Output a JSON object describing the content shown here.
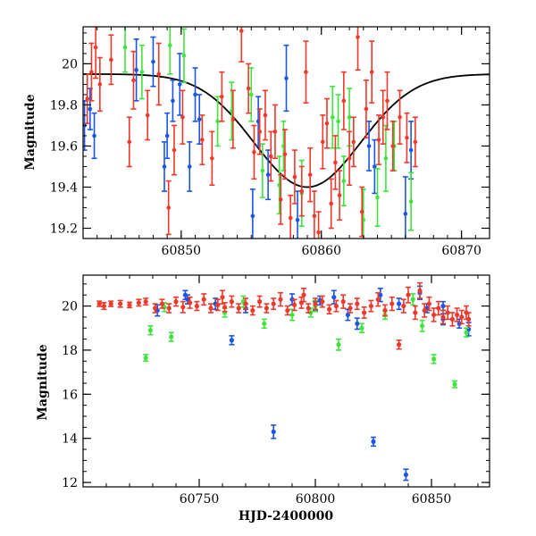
{
  "colors": {
    "blue": "#1a55e6",
    "green": "#3fe43f",
    "red": "#f0392b",
    "model": "#000000"
  },
  "chart_data": [
    {
      "type": "scatter",
      "title": "",
      "xlabel": "",
      "ylabel": "Magnitude",
      "xlim": [
        60843,
        60872
      ],
      "ylim": [
        20.18,
        19.15
      ],
      "xticks": [
        60850,
        60860,
        60870
      ],
      "yticks": [
        19.2,
        19.4,
        19.6,
        19.8,
        20
      ],
      "ytick_labels": [
        "19.2",
        "19.4",
        "19.6",
        "19.8",
        "20"
      ],
      "model_curve": {
        "type": "gaussian",
        "peak_x": 60859.0,
        "peak_mag": 19.4,
        "sigma": 3.8,
        "baseline_mag": 19.95
      },
      "series": [
        {
          "color": "blue",
          "points": [
            [
              60843.1,
              19.7,
              0.12
            ],
            [
              60843.5,
              19.78,
              0.1
            ],
            [
              60843.8,
              19.65,
              0.11
            ],
            [
              60846.8,
              19.97,
              0.15
            ],
            [
              60848.0,
              20.01,
              0.12
            ],
            [
              60848.8,
              19.5,
              0.12
            ],
            [
              60849.0,
              19.65,
              0.11
            ],
            [
              60849.4,
              19.82,
              0.1
            ],
            [
              60849.9,
              19.9,
              0.15
            ],
            [
              60850.6,
              19.5,
              0.12
            ],
            [
              60851.0,
              19.85,
              0.13
            ],
            [
              60851.3,
              19.73,
              0.12
            ],
            [
              60855.1,
              19.26,
              0.13
            ],
            [
              60855.5,
              19.72,
              0.12
            ],
            [
              60856.2,
              19.46,
              0.12
            ],
            [
              60857.5,
              19.93,
              0.16
            ],
            [
              60858.3,
              19.24,
              0.14
            ],
            [
              60863.4,
              19.6,
              0.12
            ],
            [
              60863.8,
              19.5,
              0.13
            ],
            [
              60866.0,
              19.27,
              0.18
            ],
            [
              60866.4,
              19.58,
              0.14
            ]
          ]
        },
        {
          "color": "green",
          "points": [
            [
              60846.0,
              20.08,
              0.12
            ],
            [
              60847.2,
              19.96,
              0.13
            ],
            [
              60849.2,
              20.09,
              0.14
            ],
            [
              60850.2,
              20.04,
              0.13
            ],
            [
              60852.6,
              19.72,
              0.12
            ],
            [
              60853.6,
              19.77,
              0.14
            ],
            [
              60855.0,
              19.85,
              0.13
            ],
            [
              60855.8,
              19.48,
              0.13
            ],
            [
              60857.0,
              19.41,
              0.14
            ],
            [
              60857.3,
              19.6,
              0.12
            ],
            [
              60858.6,
              19.37,
              0.16
            ],
            [
              60860.8,
              19.74,
              0.15
            ],
            [
              60861.2,
              19.72,
              0.13
            ],
            [
              60861.6,
              19.43,
              0.12
            ],
            [
              60862.0,
              19.74,
              0.14
            ],
            [
              60863.0,
              19.24,
              0.15
            ],
            [
              60864.0,
              19.35,
              0.14
            ],
            [
              60864.6,
              19.54,
              0.16
            ],
            [
              60865.2,
              19.6,
              0.12
            ],
            [
              60866.4,
              19.33,
              0.14
            ]
          ]
        },
        {
          "color": "red",
          "points": [
            [
              60843.3,
              19.83,
              0.12
            ],
            [
              60843.6,
              19.96,
              0.14
            ],
            [
              60843.9,
              20.08,
              0.15
            ],
            [
              60844.2,
              19.9,
              0.13
            ],
            [
              60845.0,
              20.02,
              0.12
            ],
            [
              60846.3,
              19.62,
              0.12
            ],
            [
              60846.6,
              19.92,
              0.14
            ],
            [
              60847.6,
              19.75,
              0.12
            ],
            [
              60848.4,
              19.95,
              0.15
            ],
            [
              60849.1,
              19.3,
              0.13
            ],
            [
              60849.5,
              19.58,
              0.12
            ],
            [
              60850.1,
              19.74,
              0.13
            ],
            [
              60851.5,
              19.63,
              0.12
            ],
            [
              60852.2,
              19.54,
              0.13
            ],
            [
              60852.9,
              19.84,
              0.12
            ],
            [
              60853.7,
              19.73,
              0.14
            ],
            [
              60854.3,
              20.16,
              0.15
            ],
            [
              60854.8,
              19.88,
              0.12
            ],
            [
              60855.2,
              19.57,
              0.13
            ],
            [
              60855.6,
              19.67,
              0.11
            ],
            [
              60856.0,
              19.75,
              0.12
            ],
            [
              60856.4,
              19.55,
              0.12
            ],
            [
              60856.7,
              19.67,
              0.13
            ],
            [
              60857.1,
              19.34,
              0.12
            ],
            [
              60857.4,
              19.56,
              0.12
            ],
            [
              60857.8,
              19.25,
              0.11
            ],
            [
              60858.1,
              19.45,
              0.13
            ],
            [
              60858.6,
              19.38,
              0.12
            ],
            [
              60858.9,
              19.96,
              0.15
            ],
            [
              60859.2,
              19.46,
              0.13
            ],
            [
              60859.5,
              19.26,
              0.12
            ],
            [
              60859.8,
              19.18,
              0.1
            ],
            [
              60860.1,
              19.62,
              0.13
            ],
            [
              60860.4,
              19.71,
              0.12
            ],
            [
              60860.7,
              19.32,
              0.12
            ],
            [
              60861.0,
              19.52,
              0.13
            ],
            [
              60861.3,
              19.36,
              0.12
            ],
            [
              60861.6,
              19.82,
              0.14
            ],
            [
              60862.0,
              19.54,
              0.13
            ],
            [
              60862.3,
              19.62,
              0.12
            ],
            [
              60862.6,
              20.13,
              0.16
            ],
            [
              60862.9,
              19.28,
              0.12
            ],
            [
              60863.2,
              19.78,
              0.14
            ],
            [
              60863.6,
              19.96,
              0.15
            ],
            [
              60864.1,
              19.63,
              0.12
            ],
            [
              60864.4,
              19.74,
              0.13
            ],
            [
              60864.7,
              19.82,
              0.14
            ],
            [
              60865.1,
              19.6,
              0.12
            ],
            [
              60865.6,
              19.74,
              0.13
            ],
            [
              60866.1,
              19.64,
              0.12
            ],
            [
              60866.7,
              19.62,
              0.12
            ]
          ]
        }
      ]
    },
    {
      "type": "scatter",
      "title": "",
      "xlabel": "HJD-2400000",
      "ylabel": "Magnitude",
      "xlim": [
        60700,
        60875
      ],
      "ylim": [
        21.4,
        11.8
      ],
      "xticks": [
        60750,
        60800,
        60850
      ],
      "yticks": [
        12,
        14,
        16,
        18,
        20
      ],
      "ytick_labels": [
        "12",
        "14",
        "16",
        "18",
        "20"
      ],
      "series": [
        {
          "color": "blue",
          "points": [
            [
              60782,
              14.3,
              0.3
            ],
            [
              60825,
              13.85,
              0.2
            ],
            [
              60839,
              12.35,
              0.25
            ],
            [
              60764,
              18.45,
              0.2
            ],
            [
              60732,
              19.8,
              0.25
            ],
            [
              60745,
              20.3,
              0.2
            ],
            [
              60757,
              20.1,
              0.25
            ],
            [
              60770,
              19.9,
              0.2
            ],
            [
              60790,
              20.3,
              0.25
            ],
            [
              60800,
              20.0,
              0.2
            ],
            [
              60808,
              20.4,
              0.3
            ],
            [
              60814,
              19.6,
              0.25
            ],
            [
              60818,
              19.2,
              0.25
            ],
            [
              60828,
              20.5,
              0.3
            ],
            [
              60836,
              20.1,
              0.25
            ],
            [
              60845,
              20.6,
              0.3
            ],
            [
              60848,
              19.9,
              0.2
            ],
            [
              60855,
              19.4,
              0.25
            ],
            [
              60862,
              19.2,
              0.2
            ],
            [
              60866,
              18.95,
              0.3
            ],
            [
              60744,
              20.5,
              0.2
            ],
            [
              60802,
              20.25,
              0.2
            ],
            [
              60855,
              20.0,
              0.2
            ]
          ]
        },
        {
          "color": "green",
          "points": [
            [
              60727,
              17.65,
              0.15
            ],
            [
              60729,
              18.9,
              0.2
            ],
            [
              60738,
              18.6,
              0.2
            ],
            [
              60761,
              19.7,
              0.2
            ],
            [
              60778,
              19.2,
              0.2
            ],
            [
              60790,
              19.6,
              0.25
            ],
            [
              60798,
              19.7,
              0.2
            ],
            [
              60810,
              18.25,
              0.25
            ],
            [
              60820,
              19.0,
              0.2
            ],
            [
              60830,
              19.6,
              0.2
            ],
            [
              60846,
              19.1,
              0.25
            ],
            [
              60851,
              17.6,
              0.2
            ],
            [
              60860,
              16.45,
              0.15
            ],
            [
              60865,
              18.8,
              0.2
            ],
            [
              60735,
              19.95,
              0.2
            ],
            [
              60769,
              20.2,
              0.25
            ],
            [
              60800,
              20.0,
              0.25
            ],
            [
              60842,
              20.3,
              0.25
            ]
          ]
        },
        {
          "color": "red",
          "points": [
            [
              60707,
              20.1,
              0.12
            ],
            [
              60709,
              20.0,
              0.15
            ],
            [
              60712,
              20.1,
              0.12
            ],
            [
              60716,
              20.1,
              0.15
            ],
            [
              60720,
              20.05,
              0.12
            ],
            [
              60724,
              20.15,
              0.15
            ],
            [
              60727,
              20.2,
              0.15
            ],
            [
              60731,
              19.9,
              0.2
            ],
            [
              60734,
              20.1,
              0.2
            ],
            [
              60737,
              19.9,
              0.2
            ],
            [
              60740,
              20.2,
              0.2
            ],
            [
              60743,
              19.95,
              0.25
            ],
            [
              60746,
              20.15,
              0.25
            ],
            [
              60749,
              20.0,
              0.2
            ],
            [
              60752,
              20.3,
              0.25
            ],
            [
              60755,
              19.9,
              0.2
            ],
            [
              60758,
              20.05,
              0.25
            ],
            [
              60761,
              19.95,
              0.2
            ],
            [
              60764,
              20.2,
              0.25
            ],
            [
              60767,
              19.9,
              0.2
            ],
            [
              60770,
              20.1,
              0.25
            ],
            [
              60773,
              19.8,
              0.2
            ],
            [
              60776,
              20.2,
              0.25
            ],
            [
              60779,
              19.9,
              0.2
            ],
            [
              60782,
              20.1,
              0.25
            ],
            [
              60785,
              20.3,
              0.3
            ],
            [
              60788,
              19.8,
              0.2
            ],
            [
              60791,
              20.05,
              0.25
            ],
            [
              60794,
              20.15,
              0.25
            ],
            [
              60797,
              19.9,
              0.2
            ],
            [
              60800,
              20.1,
              0.25
            ],
            [
              60803,
              20.2,
              0.25
            ],
            [
              60806,
              19.85,
              0.2
            ],
            [
              60809,
              20.0,
              0.25
            ],
            [
              60812,
              20.2,
              0.3
            ],
            [
              60815,
              19.9,
              0.2
            ],
            [
              60818,
              20.1,
              0.25
            ],
            [
              60821,
              19.7,
              0.25
            ],
            [
              60824,
              20.0,
              0.25
            ],
            [
              60827,
              20.3,
              0.3
            ],
            [
              60830,
              19.8,
              0.25
            ],
            [
              60833,
              20.1,
              0.3
            ],
            [
              60836,
              18.25,
              0.2
            ],
            [
              60838,
              20.0,
              0.3
            ],
            [
              60840,
              20.5,
              0.35
            ],
            [
              60843,
              19.7,
              0.3
            ],
            [
              60845,
              20.7,
              0.35
            ],
            [
              60847,
              19.8,
              0.3
            ],
            [
              60849,
              20.1,
              0.3
            ],
            [
              60851,
              19.6,
              0.3
            ],
            [
              60853,
              19.9,
              0.3
            ],
            [
              60855,
              19.5,
              0.3
            ],
            [
              60857,
              19.7,
              0.3
            ],
            [
              60859,
              19.4,
              0.3
            ],
            [
              60861,
              19.6,
              0.3
            ],
            [
              60863,
              19.5,
              0.3
            ],
            [
              60865,
              19.7,
              0.3
            ],
            [
              60866,
              19.4,
              0.3
            ],
            [
              60760,
              20.4,
              0.3
            ],
            [
              60795,
              20.5,
              0.3
            ]
          ]
        }
      ]
    }
  ]
}
